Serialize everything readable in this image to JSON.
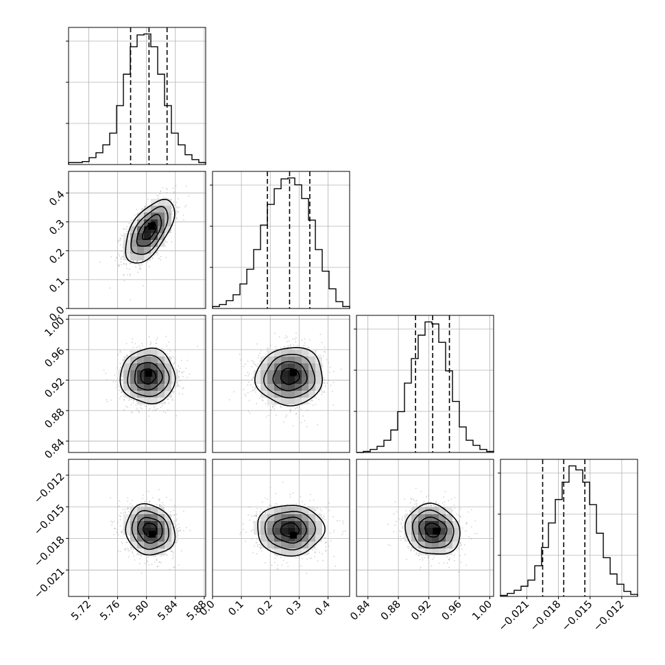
{
  "chart_data": {
    "type": "corner",
    "grid": true,
    "quantile_lines": "dashed",
    "parameters": [
      {
        "id": "p1",
        "lim": [
          5.692,
          5.882
        ],
        "ticks": [
          5.72,
          5.76,
          5.8,
          5.84,
          5.88
        ],
        "tick_labels": [
          "5.72",
          "5.76",
          "5.80",
          "5.84",
          "5.88"
        ],
        "quantiles": [
          5.778,
          5.8035,
          5.8285
        ],
        "hist": [
          2,
          2,
          3,
          7,
          12,
          20,
          32,
          60,
          92,
          120,
          132,
          133,
          120,
          92,
          60,
          32,
          20,
          10,
          5,
          2
        ]
      },
      {
        "id": "p2",
        "lim": [
          0.0,
          0.475
        ],
        "ticks": [
          0.0,
          0.1,
          0.2,
          0.3,
          0.4
        ],
        "tick_labels": [
          "0.0",
          "0.1",
          "0.2",
          "0.3",
          "0.4"
        ],
        "quantiles": [
          0.19,
          0.267,
          0.337
        ],
        "hist": [
          2,
          4,
          8,
          14,
          25,
          40,
          60,
          85,
          106,
          122,
          132,
          133,
          126,
          112,
          90,
          60,
          38,
          20,
          7,
          2
        ]
      },
      {
        "id": "p3",
        "lim": [
          0.825,
          1.005
        ],
        "ticks": [
          0.84,
          0.88,
          0.92,
          0.96,
          1.0
        ],
        "tick_labels": [
          "0.84",
          "0.88",
          "0.92",
          "0.96",
          "1.00"
        ],
        "quantiles": [
          0.9025,
          0.925,
          0.947
        ],
        "hist": [
          0,
          1,
          3,
          6,
          12,
          22,
          40,
          68,
          92,
          115,
          128,
          126,
          108,
          80,
          50,
          25,
          12,
          7,
          3,
          1
        ]
      },
      {
        "id": "p4",
        "lim": [
          -0.0235,
          -0.0105
        ],
        "ticks": [
          -0.021,
          -0.018,
          -0.015,
          -0.012
        ],
        "tick_labels": [
          "−0.021",
          "−0.018",
          "−0.015",
          "−0.012"
        ],
        "quantiles": [
          -0.0195,
          -0.0175,
          -0.0155
        ],
        "hist": [
          1,
          3,
          6,
          10,
          16,
          30,
          48,
          72,
          95,
          112,
          128,
          124,
          112,
          90,
          62,
          38,
          22,
          12,
          5,
          2
        ]
      }
    ],
    "pairs": [
      {
        "row": 1,
        "col": 0,
        "mean": [
          5.804,
          0.268
        ],
        "peak": [
          5.807,
          0.285
        ],
        "sd": [
          0.017,
          0.055
        ],
        "rho": 0.58
      },
      {
        "row": 2,
        "col": 0,
        "mean": [
          5.802,
          0.925
        ],
        "peak": [
          5.803,
          0.929
        ],
        "sd": [
          0.019,
          0.018
        ],
        "rho": 0.0
      },
      {
        "row": 2,
        "col": 1,
        "mean": [
          0.268,
          0.925
        ],
        "peak": [
          0.28,
          0.93
        ],
        "sd": [
          0.058,
          0.019
        ],
        "rho": 0.04
      },
      {
        "row": 3,
        "col": 0,
        "mean": [
          5.805,
          -0.0172
        ],
        "peak": [
          5.808,
          -0.0176
        ],
        "sd": [
          0.017,
          0.0012
        ],
        "rho": -0.12
      },
      {
        "row": 3,
        "col": 1,
        "mean": [
          0.268,
          -0.0172
        ],
        "peak": [
          0.28,
          -0.0177
        ],
        "sd": [
          0.058,
          0.0012
        ],
        "rho": 0.0
      },
      {
        "row": 3,
        "col": 2,
        "mean": [
          0.925,
          -0.0172
        ],
        "peak": [
          0.93,
          -0.0173
        ],
        "sd": [
          0.018,
          0.0012
        ],
        "rho": -0.12
      }
    ]
  }
}
